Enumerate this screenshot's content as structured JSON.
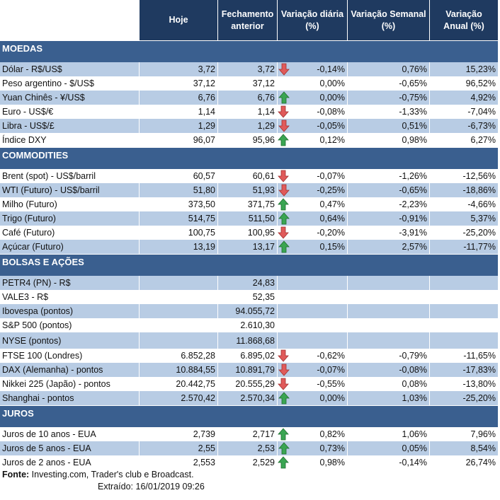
{
  "header": {
    "columns": [
      "Hoje",
      "Fechamento anterior",
      "Variação diária (%)",
      "Variação Semanal (%)",
      "Variação Anual (%)"
    ]
  },
  "colors": {
    "header": "#1f3a60",
    "section": "#3a5f8f",
    "band": "#b8cce4",
    "up": "#3aa552",
    "down": "#e05a5a"
  },
  "sections": [
    {
      "title": "MOEDAS",
      "rows": [
        {
          "label": "Dólar - R$/US$",
          "hoje": "3,72",
          "fech": "3,72",
          "arrow": "down",
          "dia": "-0,14%",
          "sem": "0,76%",
          "ano": "15,23%"
        },
        {
          "label": "Peso argentino - $/US$",
          "hoje": "37,12",
          "fech": "37,12",
          "arrow": "",
          "dia": "0,00%",
          "sem": "-0,65%",
          "ano": "96,52%"
        },
        {
          "label": "Yuan Chinês - ¥/US$",
          "hoje": "6,76",
          "fech": "6,76",
          "arrow": "up",
          "dia": "0,00%",
          "sem": "-0,75%",
          "ano": "4,92%"
        },
        {
          "label": "Euro - US$/€",
          "hoje": "1,14",
          "fech": "1,14",
          "arrow": "down",
          "dia": "-0,08%",
          "sem": "-1,33%",
          "ano": "-7,04%"
        },
        {
          "label": "Libra - US$/£",
          "hoje": "1,29",
          "fech": "1,29",
          "arrow": "down",
          "dia": "-0,05%",
          "sem": "0,51%",
          "ano": "-6,73%"
        },
        {
          "label": "Índice DXY",
          "hoje": "96,07",
          "fech": "95,96",
          "arrow": "up",
          "dia": "0,12%",
          "sem": "0,98%",
          "ano": "6,27%"
        }
      ]
    },
    {
      "title": "COMMODITIES",
      "rows": [
        {
          "label": "Brent (spot) - US$/barril",
          "hoje": "60,57",
          "fech": "60,61",
          "arrow": "down",
          "dia": "-0,07%",
          "sem": "-1,26%",
          "ano": "-12,56%"
        },
        {
          "label": "WTI (Futuro) - US$/barril",
          "hoje": "51,80",
          "fech": "51,93",
          "arrow": "down",
          "dia": "-0,25%",
          "sem": "-0,65%",
          "ano": "-18,86%"
        },
        {
          "label": "Milho (Futuro)",
          "hoje": "373,50",
          "fech": "371,75",
          "arrow": "up",
          "dia": "0,47%",
          "sem": "-2,23%",
          "ano": "-4,66%"
        },
        {
          "label": "Trigo (Futuro)",
          "hoje": "514,75",
          "fech": "511,50",
          "arrow": "up",
          "dia": "0,64%",
          "sem": "-0,91%",
          "ano": "5,37%"
        },
        {
          "label": "Café (Futuro)",
          "hoje": "100,75",
          "fech": "100,95",
          "arrow": "down",
          "dia": "-0,20%",
          "sem": "-3,91%",
          "ano": "-25,20%"
        },
        {
          "label": "Açúcar (Futuro)",
          "hoje": "13,19",
          "fech": "13,17",
          "arrow": "up",
          "dia": "0,15%",
          "sem": "2,57%",
          "ano": "-11,77%"
        }
      ]
    },
    {
      "title": "BOLSAS E AÇÕES",
      "rows": [
        {
          "label": "PETR4 (PN) - R$",
          "hoje": "",
          "fech": "24,83",
          "arrow": "",
          "dia": "",
          "sem": "",
          "ano": ""
        },
        {
          "label": "VALE3 - R$",
          "hoje": "",
          "fech": "52,35",
          "arrow": "",
          "dia": "",
          "sem": "",
          "ano": ""
        },
        {
          "label": "Ibovespa (pontos)",
          "hoje": "",
          "fech": "94.055,72",
          "arrow": "",
          "dia": "",
          "sem": "",
          "ano": ""
        },
        {
          "label": "S&P 500 (pontos)",
          "hoje": "",
          "fech": "2.610,30",
          "arrow": "",
          "dia": "",
          "sem": "",
          "ano": ""
        },
        {
          "label": "NYSE (pontos)",
          "hoje": "",
          "fech": "11.868,68",
          "arrow": "",
          "dia": "",
          "sem": "",
          "ano": ""
        },
        {
          "label": "FTSE 100 (Londres)",
          "hoje": "6.852,28",
          "fech": "6.895,02",
          "arrow": "down",
          "dia": "-0,62%",
          "sem": "-0,79%",
          "ano": "-11,65%"
        },
        {
          "label": "DAX (Alemanha) - pontos",
          "hoje": "10.884,55",
          "fech": "10.891,79",
          "arrow": "down",
          "dia": "-0,07%",
          "sem": "-0,08%",
          "ano": "-17,83%"
        },
        {
          "label": "Nikkei 225 (Japão) - pontos",
          "hoje": "20.442,75",
          "fech": "20.555,29",
          "arrow": "down",
          "dia": "-0,55%",
          "sem": "0,08%",
          "ano": "-13,80%"
        },
        {
          "label": "Shanghai - pontos",
          "hoje": "2.570,42",
          "fech": "2.570,34",
          "arrow": "up",
          "dia": "0,00%",
          "sem": "1,03%",
          "ano": "-25,20%"
        }
      ]
    },
    {
      "title": "JUROS",
      "rows": [
        {
          "label": "Juros de 10 anos - EUA",
          "hoje": "2,739",
          "fech": "2,717",
          "arrow": "up",
          "dia": "0,82%",
          "sem": "1,06%",
          "ano": "7,96%"
        },
        {
          "label": "Juros de 5 anos - EUA",
          "hoje": "2,55",
          "fech": "2,53",
          "arrow": "up",
          "dia": "0,73%",
          "sem": "0,05%",
          "ano": "8,54%"
        },
        {
          "label": "Juros de 2 anos - EUA",
          "hoje": "2,553",
          "fech": "2,529",
          "arrow": "up",
          "dia": "0,98%",
          "sem": "-0,14%",
          "ano": "26,74%"
        }
      ]
    }
  ],
  "footer": {
    "source_label": "Fonte:",
    "source_text": " Investing.com, Trader's club e Broadcast.",
    "extracted": "Extraído:   16/01/2019 09:26"
  }
}
